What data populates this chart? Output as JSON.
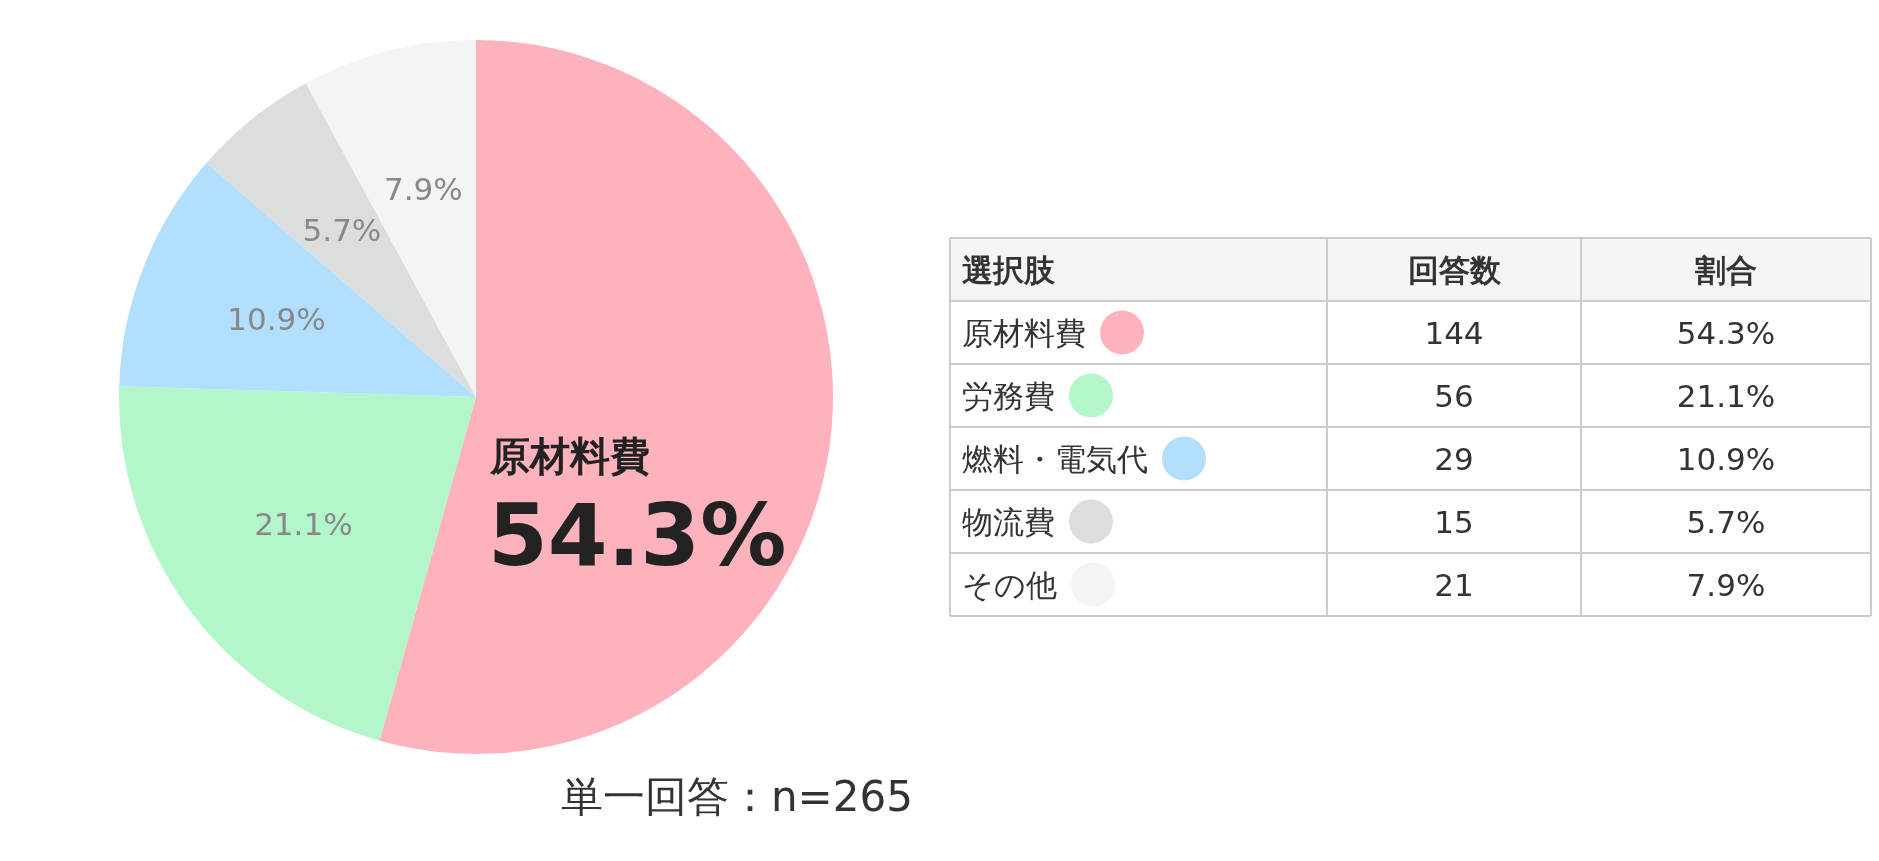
{
  "chart_data": {
    "type": "pie",
    "categories": [
      "原材料費",
      "労務費",
      "燃料・電気代",
      "物流費",
      "その他"
    ],
    "values": [
      54.3,
      21.1,
      10.9,
      5.7,
      7.9
    ],
    "value_labels": [
      "54.3%",
      "21.1%",
      "10.9%",
      "5.7%",
      "7.9%"
    ],
    "colors": [
      "#feb2bc",
      "#b3f6c9",
      "#b3dffe",
      "#dcdddd",
      "#f3f4f6"
    ],
    "legend": "right",
    "annotations": [
      "単一回答：n=265",
      "選択肢",
      "回答数",
      "割合",
      "144",
      "56",
      "29",
      "15",
      "21"
    ]
  }
}
